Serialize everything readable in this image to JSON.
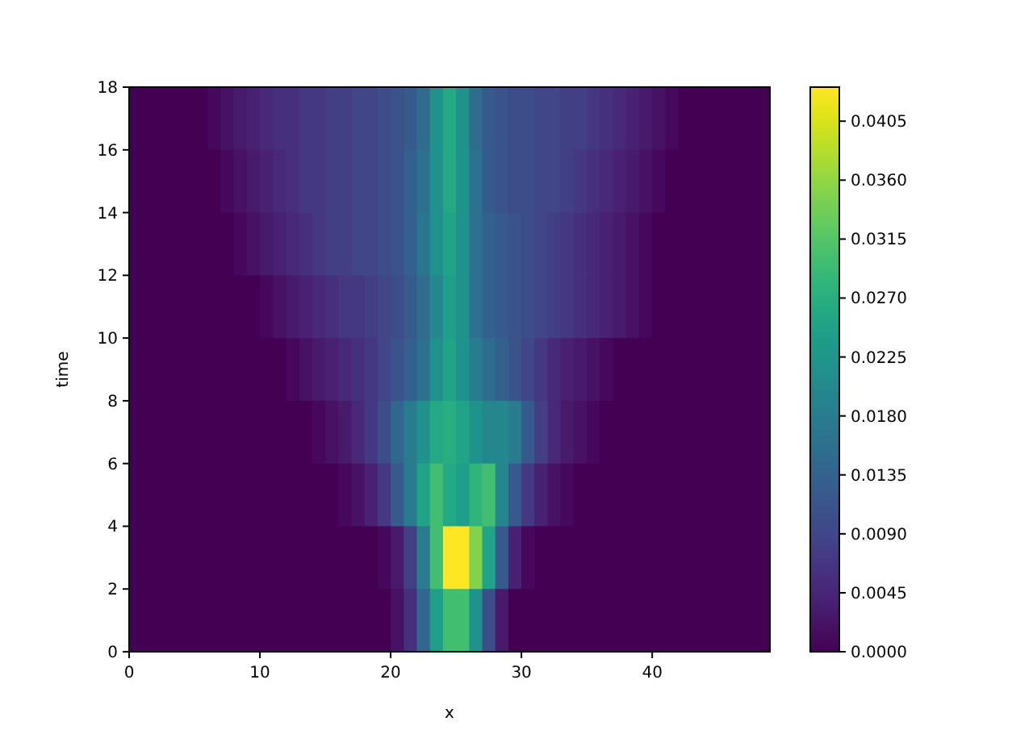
{
  "chart_data": {
    "type": "heatmap",
    "xlabel": "x",
    "ylabel": "time",
    "xlim": [
      0,
      49
    ],
    "xticks": [
      0,
      10,
      20,
      30,
      40
    ],
    "ylim": [
      0,
      18
    ],
    "yticks": [
      0,
      2,
      4,
      6,
      8,
      10,
      12,
      14,
      16,
      18
    ],
    "clim": [
      0,
      0.0431
    ],
    "cticks": [
      {
        "value": 0,
        "label": "0.0000"
      },
      {
        "value": 0.0045,
        "label": "0.0045"
      },
      {
        "value": 0.009,
        "label": "0.0090"
      },
      {
        "value": 0.0135,
        "label": "0.0135"
      },
      {
        "value": 0.018,
        "label": "0.0180"
      },
      {
        "value": 0.0225,
        "label": "0.0225"
      },
      {
        "value": 0.027,
        "label": "0.0270"
      },
      {
        "value": 0.0315,
        "label": "0.0315"
      },
      {
        "value": 0.036,
        "label": "0.0360"
      },
      {
        "value": 0.0405,
        "label": "0.0405"
      }
    ],
    "cells": [
      [
        0,
        0,
        0,
        0,
        0,
        0,
        0.001,
        0.002,
        0.003,
        0.004,
        0.005,
        0.006,
        0.006,
        0.007,
        0.007,
        0.008,
        0.008,
        0.009,
        0.009,
        0.01,
        0.011,
        0.012,
        0.015,
        0.022,
        0.026,
        0.022,
        0.015,
        0.012,
        0.011,
        0.01,
        0.01,
        0.009,
        0.009,
        0.008,
        0.008,
        0.007,
        0.006,
        0.005,
        0.004,
        0.003,
        0.002,
        0.001,
        0,
        0,
        0,
        0,
        0,
        0,
        0
      ],
      [
        0,
        0,
        0,
        0,
        0,
        0,
        0,
        0.001,
        0.002,
        0.003,
        0.004,
        0.005,
        0.006,
        0.007,
        0.007,
        0.008,
        0.008,
        0.009,
        0.009,
        0.01,
        0.011,
        0.013,
        0.016,
        0.022,
        0.026,
        0.022,
        0.016,
        0.012,
        0.011,
        0.01,
        0.01,
        0.009,
        0.009,
        0.008,
        0.007,
        0.006,
        0.005,
        0.004,
        0.003,
        0.002,
        0.001,
        0,
        0,
        0,
        0,
        0,
        0,
        0,
        0
      ],
      [
        0,
        0,
        0,
        0,
        0,
        0,
        0,
        0,
        0.001,
        0.002,
        0.003,
        0.004,
        0.005,
        0.006,
        0.007,
        0.008,
        0.008,
        0.009,
        0.009,
        0.01,
        0.011,
        0.013,
        0.017,
        0.022,
        0.025,
        0.022,
        0.016,
        0.013,
        0.012,
        0.011,
        0.01,
        0.009,
        0.008,
        0.007,
        0.006,
        0.005,
        0.004,
        0.003,
        0.002,
        0.001,
        0,
        0,
        0,
        0,
        0,
        0,
        0,
        0,
        0
      ],
      [
        0,
        0,
        0,
        0,
        0,
        0,
        0,
        0,
        0,
        0,
        0.001,
        0.002,
        0.003,
        0.004,
        0.005,
        0.006,
        0.007,
        0.007,
        0.008,
        0.009,
        0.01,
        0.012,
        0.015,
        0.02,
        0.024,
        0.022,
        0.016,
        0.013,
        0.012,
        0.011,
        0.01,
        0.009,
        0.008,
        0.007,
        0.006,
        0.005,
        0.004,
        0.003,
        0.002,
        0.001,
        0,
        0,
        0,
        0,
        0,
        0,
        0,
        0,
        0
      ],
      [
        0,
        0,
        0,
        0,
        0,
        0,
        0,
        0,
        0,
        0,
        0,
        0,
        0.001,
        0.002,
        0.003,
        0.004,
        0.005,
        0.006,
        0.007,
        0.009,
        0.011,
        0.013,
        0.016,
        0.022,
        0.025,
        0.022,
        0.018,
        0.015,
        0.013,
        0.011,
        0.009,
        0.007,
        0.005,
        0.004,
        0.003,
        0.002,
        0.001,
        0,
        0,
        0,
        0,
        0,
        0,
        0,
        0,
        0,
        0,
        0,
        0
      ],
      [
        0,
        0,
        0,
        0,
        0,
        0,
        0,
        0,
        0,
        0,
        0,
        0,
        0,
        0,
        0.001,
        0.002,
        0.003,
        0.005,
        0.007,
        0.01,
        0.014,
        0.018,
        0.022,
        0.026,
        0.027,
        0.025,
        0.022,
        0.02,
        0.02,
        0.018,
        0.012,
        0.008,
        0.005,
        0.003,
        0.002,
        0.001,
        0,
        0,
        0,
        0,
        0,
        0,
        0,
        0,
        0,
        0,
        0,
        0,
        0
      ],
      [
        0,
        0,
        0,
        0,
        0,
        0,
        0,
        0,
        0,
        0,
        0,
        0,
        0,
        0,
        0,
        0,
        0.001,
        0.002,
        0.004,
        0.007,
        0.012,
        0.018,
        0.025,
        0.03,
        0.026,
        0.024,
        0.028,
        0.03,
        0.02,
        0.012,
        0.007,
        0.004,
        0.002,
        0.001,
        0,
        0,
        0,
        0,
        0,
        0,
        0,
        0,
        0,
        0,
        0,
        0,
        0,
        0,
        0
      ],
      [
        0,
        0,
        0,
        0,
        0,
        0,
        0,
        0,
        0,
        0,
        0,
        0,
        0,
        0,
        0,
        0,
        0,
        0,
        0,
        0.001,
        0.003,
        0.008,
        0.018,
        0.03,
        0.043,
        0.043,
        0.035,
        0.025,
        0.012,
        0.004,
        0.001,
        0,
        0,
        0,
        0,
        0,
        0,
        0,
        0,
        0,
        0,
        0,
        0,
        0,
        0,
        0,
        0,
        0,
        0
      ],
      [
        0,
        0,
        0,
        0,
        0,
        0,
        0,
        0,
        0,
        0,
        0,
        0,
        0,
        0,
        0,
        0,
        0,
        0,
        0,
        0,
        0.002,
        0.006,
        0.014,
        0.024,
        0.03,
        0.03,
        0.022,
        0.01,
        0.003,
        0,
        0,
        0,
        0,
        0,
        0,
        0,
        0,
        0,
        0,
        0,
        0,
        0,
        0,
        0,
        0,
        0,
        0,
        0,
        0
      ]
    ]
  }
}
